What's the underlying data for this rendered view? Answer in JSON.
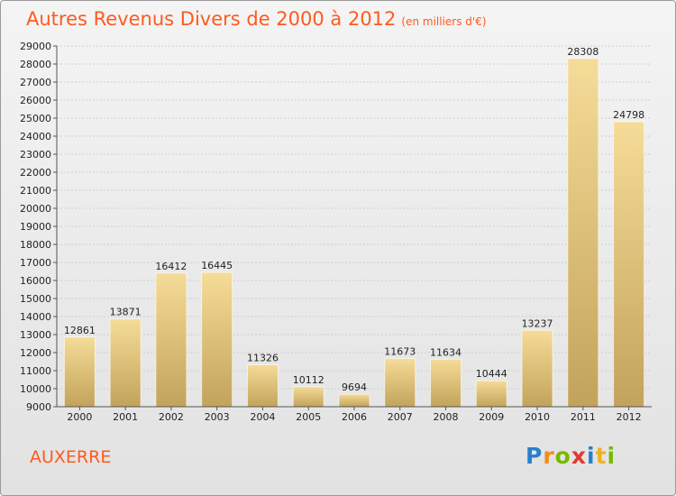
{
  "header": {
    "title": "Autres Revenus Divers de 2000 à 2012",
    "unit": "(en milliers d'€)"
  },
  "footer": {
    "commune": "AUXERRE",
    "brand": "Proxiti",
    "brand_letters": [
      {
        "ch": "P",
        "color": "#2a7fc9"
      },
      {
        "ch": "r",
        "color": "#f28c1e"
      },
      {
        "ch": "o",
        "color": "#7ab800"
      },
      {
        "ch": "x",
        "color": "#e03a2f"
      },
      {
        "ch": "i",
        "color": "#2a7fc9"
      },
      {
        "ch": "t",
        "color": "#f2b21e"
      },
      {
        "ch": "i",
        "color": "#7ab800"
      }
    ]
  },
  "colors": {
    "title": "#ff5a1f",
    "bar_top": "#f5dc98",
    "bar_bottom": "#c3a35b",
    "grid": "#cfcfcf"
  },
  "chart_data": {
    "type": "bar",
    "title": "Autres Revenus Divers de 2000 à 2012",
    "subtitle": "(en milliers d'€)",
    "categories": [
      "2000",
      "2001",
      "2002",
      "2003",
      "2004",
      "2005",
      "2006",
      "2007",
      "2008",
      "2009",
      "2010",
      "2011",
      "2012"
    ],
    "values": [
      12861,
      13871,
      16412,
      16445,
      11326,
      10112,
      9694,
      11673,
      11634,
      10444,
      13237,
      28308,
      24798
    ],
    "value_labels": [
      "12861",
      "13871",
      "16412",
      "16445",
      "11326",
      "10112",
      "9694",
      "11673",
      "11634",
      "10444",
      "13237",
      "28308",
      "24798"
    ],
    "ylim": [
      9000,
      29000
    ],
    "yticks": [
      "9000",
      "10000",
      "11000",
      "12000",
      "13000",
      "14000",
      "15000",
      "16000",
      "17000",
      "18000",
      "19000",
      "20000",
      "21000",
      "22000",
      "23000",
      "24000",
      "25000",
      "26000",
      "27000",
      "28000",
      "29000"
    ],
    "grid": true,
    "legend": false
  }
}
